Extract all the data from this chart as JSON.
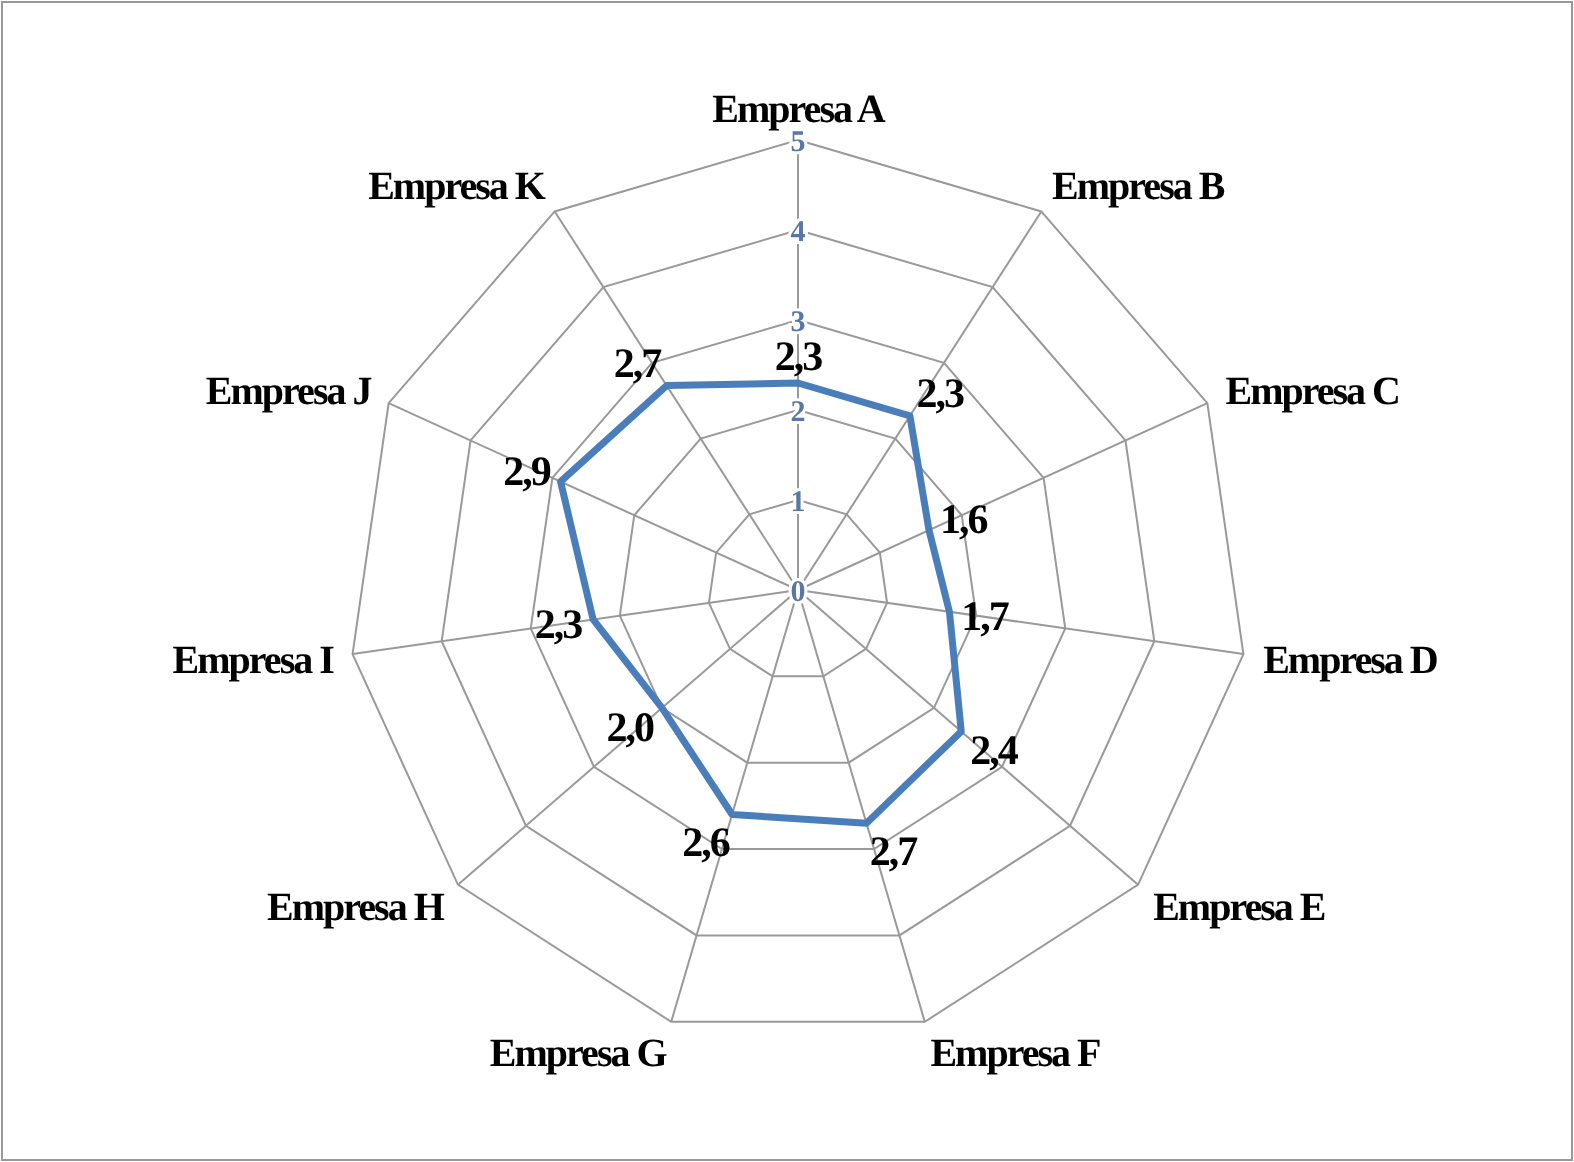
{
  "chart_data": {
    "type": "radar",
    "categories": [
      "Empresa A",
      "Empresa B",
      "Empresa C",
      "Empresa D",
      "Empresa E",
      "Empresa F",
      "Empresa G",
      "Empresa H",
      "Empresa I",
      "Empresa J",
      "Empresa K"
    ],
    "series": [
      {
        "color": "#4a7ebb",
        "values": [
          2.3,
          2.3,
          1.6,
          1.7,
          2.4,
          2.7,
          2.6,
          2.0,
          2.3,
          2.9,
          2.7
        ],
        "value_labels": [
          "2,3",
          "2,3",
          "1,6",
          "1,7",
          "2,4",
          "2,7",
          "2,6",
          "2,0",
          "2,3",
          "2,9",
          "2,7"
        ]
      }
    ],
    "ylim": [
      0,
      5
    ],
    "yticks": [
      0,
      1,
      2,
      3,
      4,
      5
    ],
    "grid": true,
    "marker": "none"
  }
}
